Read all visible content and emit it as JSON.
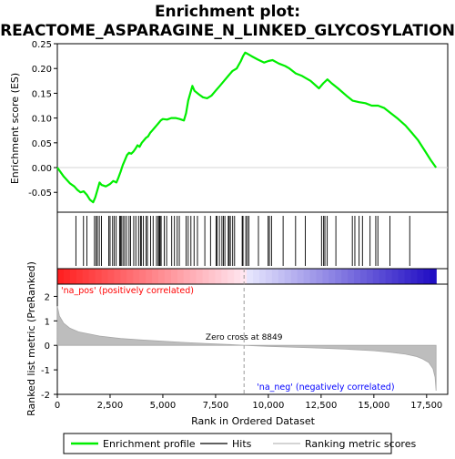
{
  "chart_data": {
    "type": "line",
    "title_line1": "Enrichment plot:",
    "title_line2": "REACTOME_ASPARAGINE_N_LINKED_GLYCOSYLATION",
    "top_panel": {
      "ylabel": "Enrichment score (ES)",
      "ylim": [
        -0.09,
        0.25
      ],
      "yticks": [
        -0.05,
        0.0,
        0.05,
        0.1,
        0.15,
        0.2,
        0.25
      ],
      "ytick_labels": [
        "-0.05",
        "0.00",
        "0.05",
        "0.10",
        "0.15",
        "0.20",
        "0.25"
      ],
      "series": [
        {
          "name": "Enrichment profile",
          "color": "#00ee00",
          "x": [
            0,
            300,
            600,
            800,
            950,
            1100,
            1250,
            1400,
            1550,
            1700,
            1800,
            1900,
            2000,
            2100,
            2300,
            2500,
            2650,
            2800,
            2900,
            3000,
            3100,
            3200,
            3300,
            3400,
            3500,
            3600,
            3700,
            3800,
            3900,
            4000,
            4100,
            4200,
            4300,
            4400,
            4500,
            4600,
            4700,
            4800,
            4900,
            5000,
            5200,
            5400,
            5600,
            5800,
            6000,
            6100,
            6200,
            6300,
            6400,
            6500,
            6700,
            6900,
            7100,
            7300,
            7500,
            7700,
            7900,
            8100,
            8300,
            8500,
            8700,
            8800,
            8900,
            9000,
            9200,
            9500,
            9800,
            10000,
            10200,
            10500,
            10800,
            11000,
            11300,
            11600,
            12000,
            12400,
            12600,
            12800,
            13000,
            13300,
            13700,
            14000,
            14300,
            14600,
            14900,
            15200,
            15500,
            15800,
            16100,
            16500,
            16800,
            17100,
            17400,
            17700,
            17950
          ],
          "y": [
            0.0,
            -0.018,
            -0.032,
            -0.038,
            -0.045,
            -0.05,
            -0.048,
            -0.055,
            -0.065,
            -0.07,
            -0.06,
            -0.045,
            -0.03,
            -0.035,
            -0.038,
            -0.033,
            -0.027,
            -0.03,
            -0.02,
            -0.008,
            0.005,
            0.015,
            0.025,
            0.03,
            0.028,
            0.032,
            0.038,
            0.045,
            0.042,
            0.05,
            0.055,
            0.06,
            0.063,
            0.07,
            0.075,
            0.08,
            0.085,
            0.09,
            0.095,
            0.098,
            0.097,
            0.1,
            0.1,
            0.098,
            0.095,
            0.11,
            0.135,
            0.15,
            0.165,
            0.155,
            0.148,
            0.142,
            0.14,
            0.145,
            0.155,
            0.165,
            0.175,
            0.185,
            0.195,
            0.2,
            0.215,
            0.225,
            0.232,
            0.23,
            0.225,
            0.218,
            0.212,
            0.215,
            0.217,
            0.21,
            0.205,
            0.2,
            0.19,
            0.185,
            0.175,
            0.16,
            0.17,
            0.178,
            0.17,
            0.16,
            0.145,
            0.135,
            0.132,
            0.13,
            0.125,
            0.125,
            0.12,
            0.11,
            0.1,
            0.085,
            0.07,
            0.055,
            0.035,
            0.015,
            0.0
          ]
        }
      ]
    },
    "hits": [
      880,
      1240,
      1400,
      1760,
      1840,
      1900,
      1990,
      2090,
      2440,
      2500,
      2620,
      2700,
      2790,
      2950,
      2990,
      3030,
      3110,
      3190,
      3280,
      3400,
      3470,
      3620,
      3720,
      3850,
      3940,
      3980,
      4080,
      4210,
      4270,
      4420,
      4540,
      4700,
      4780,
      4830,
      4870,
      4920,
      5070,
      5180,
      5420,
      5550,
      5680,
      5780,
      6100,
      6200,
      6330,
      6480,
      6640,
      6990,
      7260,
      7520,
      7570,
      7680,
      7800,
      7870,
      7940,
      8100,
      8140,
      8200,
      8310,
      8400,
      8760,
      8800,
      8930,
      9000,
      9080,
      9530,
      9990,
      10050,
      10150,
      10700,
      11290,
      11750,
      12520,
      12620,
      12680,
      12790,
      13200,
      13980,
      14100,
      14300,
      14460,
      14820,
      15090,
      15190,
      15760,
      16700
    ],
    "bottom_panel": {
      "ylabel": "Ranked list metric (PreRanked)",
      "ylim": [
        -2,
        2.5
      ],
      "yticks": [
        -2,
        -1,
        0,
        1,
        2
      ],
      "ytick_labels": [
        "-2",
        "-1",
        "0",
        "1",
        "2"
      ],
      "xlabel": "Rank in Ordered Dataset",
      "xlim": [
        0,
        18500
      ],
      "xticks": [
        0,
        2500,
        5000,
        7500,
        10000,
        12500,
        15000,
        17500
      ],
      "xtick_labels": [
        "0",
        "2,500",
        "5,000",
        "7,500",
        "10,000",
        "12,500",
        "15,000",
        "17,500"
      ],
      "metric_curve": {
        "x": [
          0,
          100,
          300,
          600,
          1000,
          2000,
          3000,
          4000,
          5000,
          6000,
          7000,
          8000,
          8849,
          10000,
          11000,
          12000,
          13000,
          14000,
          15000,
          15800,
          16500,
          17000,
          17300,
          17600,
          17800,
          17900,
          17950
        ],
        "y": [
          1.6,
          1.2,
          0.9,
          0.7,
          0.55,
          0.38,
          0.28,
          0.22,
          0.17,
          0.12,
          0.08,
          0.04,
          0.0,
          -0.04,
          -0.07,
          -0.1,
          -0.13,
          -0.17,
          -0.22,
          -0.28,
          -0.36,
          -0.45,
          -0.55,
          -0.7,
          -0.95,
          -1.3,
          -1.85
        ]
      },
      "zero_cross_label": "Zero cross at 8849",
      "zero_cross_x": 8849,
      "pos_label": "'na_pos' (positively correlated)",
      "neg_label": "'na_neg' (negatively correlated)",
      "pos_label_color": "#ff0000",
      "neg_label_color": "#0000ff"
    },
    "legend": {
      "items": [
        {
          "label": "Enrichment profile",
          "color": "#00ee00"
        },
        {
          "label": "Hits",
          "color": "#000000"
        },
        {
          "label": "Ranking metric scores",
          "color": "#bbbbbb"
        }
      ]
    }
  }
}
